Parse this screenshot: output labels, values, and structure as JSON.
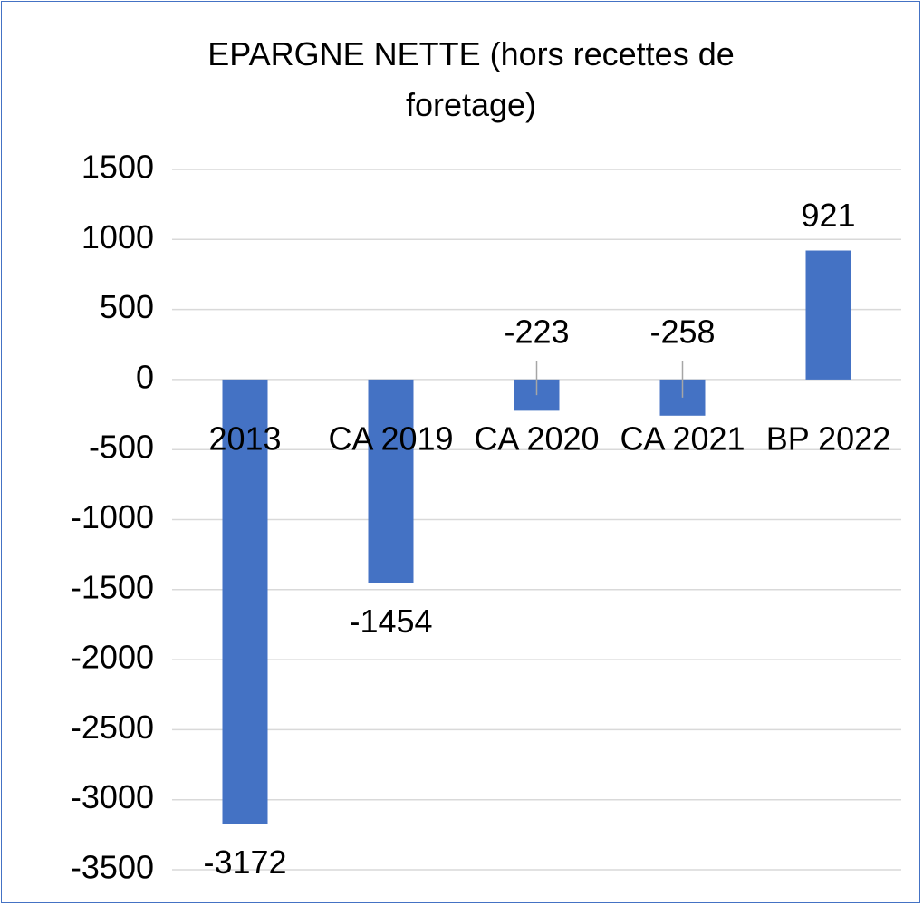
{
  "chart_data": {
    "type": "bar",
    "title": "EPARGNE NETTE (hors recettes de foretage)",
    "categories": [
      "2013",
      "CA 2019",
      "CA 2020",
      "CA 2021",
      "BP 2022"
    ],
    "values": [
      -3172,
      -1454,
      -223,
      -258,
      921
    ],
    "color": "#4472c4",
    "ylim": [
      -3500,
      1500
    ],
    "yticks": [
      -3500,
      -3000,
      -2500,
      -2000,
      -1500,
      -1000,
      -500,
      0,
      500,
      1000,
      1500
    ],
    "grid": true
  }
}
